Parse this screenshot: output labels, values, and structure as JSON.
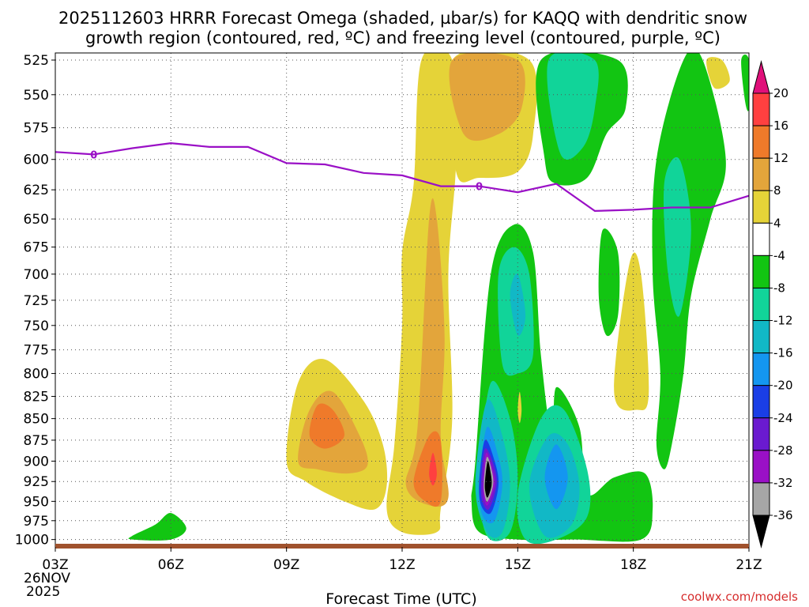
{
  "chart_data": {
    "type": "contour",
    "title": [
      "2025112603 HRRR Forecast Omega (shaded, µbar/s) for KAQQ with dendritic snow",
      "growth region (contoured, red, ºC) and freezing level (contoured, purple, ºC)"
    ],
    "x_ticks": [
      "03Z",
      "06Z",
      "09Z",
      "12Z",
      "15Z",
      "18Z",
      "21Z"
    ],
    "x_hours": [
      3,
      6,
      9,
      12,
      15,
      18,
      21
    ],
    "xlim": [
      3,
      21
    ],
    "date_label": [
      "26NOV",
      "2025"
    ],
    "xlabel": "Forecast Time (UTC)",
    "y_ticks": [
      525,
      550,
      575,
      600,
      625,
      650,
      675,
      700,
      725,
      750,
      775,
      800,
      825,
      850,
      875,
      900,
      925,
      950,
      975,
      1000
    ],
    "ylim": [
      1010,
      520
    ],
    "y_scale": "log-pressure",
    "grid": "dotted",
    "colorbar": {
      "ticks": [
        20,
        16,
        12,
        8,
        4,
        -4,
        -8,
        -12,
        -16,
        -20,
        -24,
        -28,
        -32,
        -36
      ],
      "levels": [
        {
          "from": 20,
          "to": null,
          "color": "#e0107a"
        },
        {
          "from": 16,
          "to": 20,
          "color": "#ff4040"
        },
        {
          "from": 12,
          "to": 16,
          "color": "#ef7a2a"
        },
        {
          "from": 8,
          "to": 12,
          "color": "#e3a53b"
        },
        {
          "from": 4,
          "to": 8,
          "color": "#e5d338"
        },
        {
          "from": -4,
          "to": 4,
          "color": "#ffffff"
        },
        {
          "from": -8,
          "to": -4,
          "color": "#12c512"
        },
        {
          "from": -12,
          "to": -8,
          "color": "#11d499"
        },
        {
          "from": -16,
          "to": -12,
          "color": "#11b8c6"
        },
        {
          "from": -20,
          "to": -16,
          "color": "#1496f0"
        },
        {
          "from": -24,
          "to": -20,
          "color": "#1a3ee6"
        },
        {
          "from": -28,
          "to": -24,
          "color": "#6a1ad0"
        },
        {
          "from": -32,
          "to": -28,
          "color": "#9a10c6"
        },
        {
          "from": -36,
          "to": -32,
          "color": "#a6a6a6"
        },
        {
          "from": null,
          "to": -36,
          "color": "#000000"
        }
      ]
    },
    "freezing_level": {
      "label": "0",
      "color": "#9a10c6",
      "points": [
        [
          3,
          594
        ],
        [
          4,
          596
        ],
        [
          5,
          591
        ],
        [
          6,
          587
        ],
        [
          7,
          590
        ],
        [
          8,
          590
        ],
        [
          9,
          603
        ],
        [
          10,
          604
        ],
        [
          11,
          611
        ],
        [
          12,
          613
        ],
        [
          13,
          622
        ],
        [
          14,
          622
        ],
        [
          15,
          627
        ],
        [
          16,
          620
        ],
        [
          17,
          643
        ],
        [
          18,
          642
        ],
        [
          19,
          640
        ],
        [
          20,
          640
        ],
        [
          21,
          630
        ]
      ]
    },
    "omega_regions": [
      {
        "level": "4",
        "points": [
          [
            12.5,
            525
          ],
          [
            13.3,
            525
          ],
          [
            13.4,
            600
          ],
          [
            13.2,
            700
          ],
          [
            13.3,
            850
          ],
          [
            13.0,
            960
          ],
          [
            12.9,
            990
          ],
          [
            12.0,
            990
          ],
          [
            11.6,
            960
          ],
          [
            11.8,
            880
          ],
          [
            12.0,
            750
          ],
          [
            12.0,
            680
          ],
          [
            12.3,
            620
          ]
        ]
      },
      {
        "level": "4",
        "points": [
          [
            13.3,
            525
          ],
          [
            15.3,
            525
          ],
          [
            15.4,
            580
          ],
          [
            15.0,
            610
          ],
          [
            14.0,
            615
          ],
          [
            13.4,
            610
          ]
        ]
      },
      {
        "level": "4",
        "points": [
          [
            9.0,
            900
          ],
          [
            9.3,
            810
          ],
          [
            10.0,
            785
          ],
          [
            11.0,
            830
          ],
          [
            11.5,
            880
          ],
          [
            11.6,
            930
          ],
          [
            11.3,
            960
          ],
          [
            10.5,
            950
          ],
          [
            9.5,
            925
          ]
        ]
      },
      {
        "level": "8",
        "points": [
          [
            13.3,
            525
          ],
          [
            15.0,
            525
          ],
          [
            15.1,
            560
          ],
          [
            14.5,
            580
          ],
          [
            13.6,
            580
          ]
        ]
      },
      {
        "level": "8",
        "points": [
          [
            9.3,
            900
          ],
          [
            9.6,
            840
          ],
          [
            10.2,
            820
          ],
          [
            10.9,
            870
          ],
          [
            11.1,
            905
          ],
          [
            10.6,
            915
          ],
          [
            9.8,
            910
          ]
        ]
      },
      {
        "level": "8",
        "points": [
          [
            12.4,
            860
          ],
          [
            12.7,
            650
          ],
          [
            12.9,
            650
          ],
          [
            13.1,
            760
          ],
          [
            13.0,
            870
          ],
          [
            13.2,
            945
          ],
          [
            12.7,
            955
          ],
          [
            12.1,
            930
          ]
        ]
      },
      {
        "level": "12",
        "points": [
          [
            9.6,
            870
          ],
          [
            9.8,
            835
          ],
          [
            10.2,
            840
          ],
          [
            10.5,
            870
          ],
          [
            10.0,
            885
          ]
        ]
      },
      {
        "level": "12",
        "points": [
          [
            12.3,
            925
          ],
          [
            12.7,
            870
          ],
          [
            13.0,
            875
          ],
          [
            13.0,
            950
          ],
          [
            12.6,
            950
          ]
        ]
      },
      {
        "level": "16",
        "points": [
          [
            12.7,
            915
          ],
          [
            12.8,
            890
          ],
          [
            12.9,
            915
          ],
          [
            12.8,
            930
          ]
        ]
      },
      {
        "level": "-4",
        "points": [
          [
            13.9,
            900
          ],
          [
            14.3,
            700
          ],
          [
            14.9,
            655
          ],
          [
            15.4,
            680
          ],
          [
            15.6,
            780
          ],
          [
            15.9,
            880
          ],
          [
            16.0,
            815
          ],
          [
            16.6,
            860
          ],
          [
            16.8,
            940
          ],
          [
            17.5,
            920
          ],
          [
            18.3,
            915
          ],
          [
            18.5,
            960
          ],
          [
            18.2,
            1000
          ],
          [
            16.5,
            1000
          ],
          [
            15.0,
            1000
          ],
          [
            14.0,
            990
          ],
          [
            13.8,
            950
          ]
        ]
      },
      {
        "level": "-4",
        "points": [
          [
            15.6,
            525
          ],
          [
            17.6,
            525
          ],
          [
            17.8,
            560
          ],
          [
            17.3,
            580
          ],
          [
            16.8,
            615
          ],
          [
            16.0,
            620
          ],
          [
            15.7,
            600
          ]
        ]
      },
      {
        "level": "-4",
        "points": [
          [
            19.3,
            525
          ],
          [
            19.8,
            525
          ],
          [
            20.4,
            600
          ],
          [
            20.0,
            650
          ],
          [
            19.5,
            720
          ],
          [
            19.3,
            800
          ],
          [
            19.0,
            880
          ],
          [
            18.8,
            910
          ],
          [
            18.6,
            880
          ],
          [
            18.7,
            800
          ],
          [
            18.5,
            700
          ],
          [
            18.6,
            600
          ]
        ]
      },
      {
        "level": "-4",
        "points": [
          [
            17.2,
            660
          ],
          [
            17.6,
            680
          ],
          [
            17.6,
            740
          ],
          [
            17.3,
            760
          ],
          [
            17.1,
            720
          ]
        ]
      },
      {
        "level": "-4",
        "points": [
          [
            20.8,
            525
          ],
          [
            21.0,
            525
          ],
          [
            21.0,
            560
          ],
          [
            20.9,
            555
          ]
        ]
      },
      {
        "level": "-4",
        "points": [
          [
            5.0,
            995
          ],
          [
            5.6,
            980
          ],
          [
            6.0,
            965
          ],
          [
            6.4,
            985
          ],
          [
            6.0,
            1000
          ],
          [
            5.0,
            1000
          ]
        ]
      },
      {
        "level": "-8",
        "points": [
          [
            15.8,
            525
          ],
          [
            17.0,
            525
          ],
          [
            17.0,
            560
          ],
          [
            16.7,
            590
          ],
          [
            16.1,
            595
          ]
        ]
      },
      {
        "level": "-8",
        "points": [
          [
            14.5,
            700
          ],
          [
            14.9,
            675
          ],
          [
            15.3,
            700
          ],
          [
            15.4,
            780
          ],
          [
            15.0,
            800
          ],
          [
            14.6,
            790
          ]
        ]
      },
      {
        "level": "-8",
        "points": [
          [
            14.0,
            920
          ],
          [
            14.3,
            810
          ],
          [
            14.8,
            850
          ],
          [
            15.0,
            920
          ],
          [
            14.8,
            990
          ],
          [
            14.2,
            995
          ]
        ]
      },
      {
        "level": "-8",
        "points": [
          [
            15.0,
            940
          ],
          [
            15.6,
            850
          ],
          [
            16.2,
            840
          ],
          [
            16.8,
            910
          ],
          [
            16.8,
            970
          ],
          [
            16.0,
            1000
          ],
          [
            15.2,
            1000
          ]
        ]
      },
      {
        "level": "-8",
        "points": [
          [
            18.8,
            620
          ],
          [
            19.2,
            600
          ],
          [
            19.5,
            660
          ],
          [
            19.2,
            740
          ],
          [
            18.9,
            700
          ]
        ]
      },
      {
        "level": "-12",
        "points": [
          [
            14.8,
            720
          ],
          [
            15.0,
            700
          ],
          [
            15.2,
            740
          ],
          [
            15.0,
            760
          ]
        ]
      },
      {
        "level": "-12",
        "points": [
          [
            13.9,
            930
          ],
          [
            14.2,
            830
          ],
          [
            14.6,
            870
          ],
          [
            14.8,
            930
          ],
          [
            14.6,
            990
          ],
          [
            14.2,
            990
          ]
        ]
      },
      {
        "level": "-12",
        "points": [
          [
            15.3,
            930
          ],
          [
            15.8,
            870
          ],
          [
            16.3,
            880
          ],
          [
            16.6,
            930
          ],
          [
            16.4,
            980
          ],
          [
            15.7,
            995
          ]
        ]
      },
      {
        "level": "-16",
        "points": [
          [
            14.0,
            930
          ],
          [
            14.2,
            860
          ],
          [
            14.5,
            895
          ],
          [
            14.6,
            930
          ],
          [
            14.4,
            975
          ],
          [
            14.1,
            970
          ]
        ]
      },
      {
        "level": "-16",
        "points": [
          [
            15.7,
            920
          ],
          [
            16.0,
            880
          ],
          [
            16.3,
            920
          ],
          [
            16.0,
            960
          ]
        ]
      },
      {
        "level": "-20",
        "points": [
          [
            14.0,
            925
          ],
          [
            14.15,
            875
          ],
          [
            14.4,
            900
          ],
          [
            14.5,
            930
          ],
          [
            14.3,
            965
          ],
          [
            14.05,
            955
          ]
        ]
      },
      {
        "level": "-24",
        "points": [
          [
            14.05,
            925
          ],
          [
            14.15,
            885
          ],
          [
            14.38,
            905
          ],
          [
            14.45,
            930
          ],
          [
            14.25,
            960
          ],
          [
            14.08,
            950
          ]
        ]
      },
      {
        "level": "-28",
        "points": [
          [
            14.1,
            925
          ],
          [
            14.18,
            890
          ],
          [
            14.35,
            910
          ],
          [
            14.4,
            930
          ],
          [
            14.22,
            955
          ],
          [
            14.12,
            945
          ]
        ]
      },
      {
        "level": "-32",
        "points": [
          [
            14.12,
            925
          ],
          [
            14.2,
            895
          ],
          [
            14.33,
            912
          ],
          [
            14.36,
            930
          ],
          [
            14.22,
            950
          ],
          [
            14.14,
            942
          ]
        ]
      },
      {
        "level": "-36",
        "points": [
          [
            14.15,
            925
          ],
          [
            14.22,
            900
          ],
          [
            14.3,
            915
          ],
          [
            14.32,
            930
          ],
          [
            14.22,
            945
          ],
          [
            14.16,
            938
          ]
        ]
      },
      {
        "level": "8",
        "points": [
          [
            17.8,
            760
          ],
          [
            17.95,
            700
          ],
          [
            18.1,
            780
          ],
          [
            17.9,
            800
          ]
        ]
      },
      {
        "level": "4",
        "points": [
          [
            17.5,
            820
          ],
          [
            17.9,
            690
          ],
          [
            18.2,
            700
          ],
          [
            18.4,
            820
          ],
          [
            18.1,
            840
          ]
        ]
      },
      {
        "level": "4",
        "points": [
          [
            15.0,
            840
          ],
          [
            15.05,
            820
          ],
          [
            15.1,
            840
          ],
          [
            15.05,
            855
          ]
        ]
      },
      {
        "level": "4",
        "points": [
          [
            19.9,
            525
          ],
          [
            20.3,
            525
          ],
          [
            20.5,
            540
          ],
          [
            20.1,
            545
          ]
        ]
      }
    ],
    "ground": {
      "color": "#a0522d"
    }
  },
  "credit": "coolwx.com/models"
}
